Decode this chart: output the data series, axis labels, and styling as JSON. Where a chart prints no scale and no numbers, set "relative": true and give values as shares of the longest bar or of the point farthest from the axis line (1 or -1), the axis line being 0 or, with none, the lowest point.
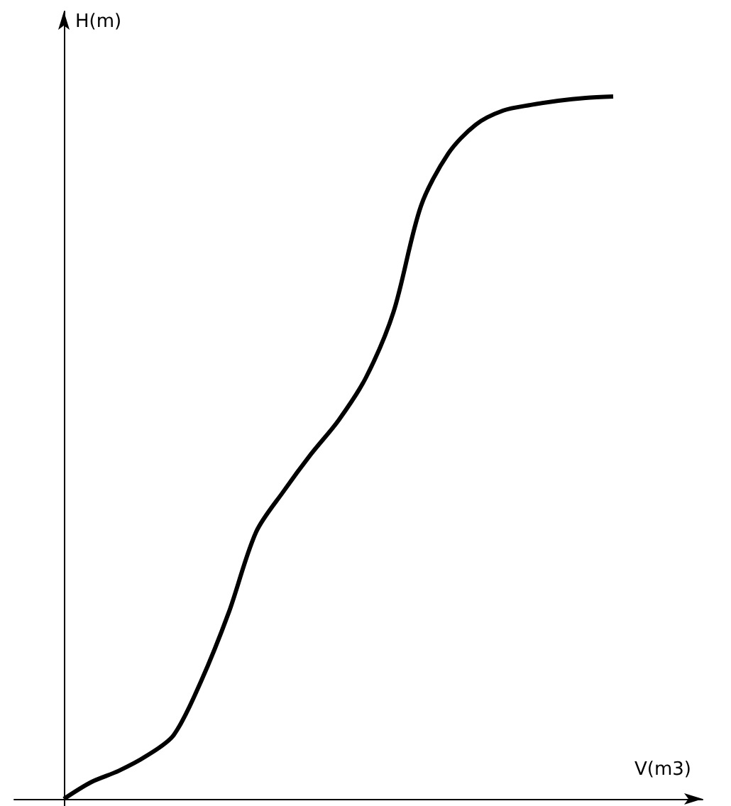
{
  "chart_data": {
    "type": "line",
    "xlabel": "V(m3)",
    "ylabel": "H(m)",
    "relative": true,
    "marker": "none",
    "color": "#000000",
    "categories": [
      null,
      null,
      null,
      null,
      null,
      null,
      null,
      null,
      null,
      null,
      null,
      null,
      null,
      null,
      null,
      null,
      null,
      null,
      null,
      null,
      null
    ],
    "values": [
      0,
      0.024,
      0.04,
      0.061,
      0.091,
      0.168,
      0.265,
      0.38,
      0.438,
      0.491,
      0.539,
      0.6,
      0.693,
      0.844,
      0.919,
      0.96,
      0.98,
      0.988,
      0.994,
      0.998,
      1
    ]
  }
}
